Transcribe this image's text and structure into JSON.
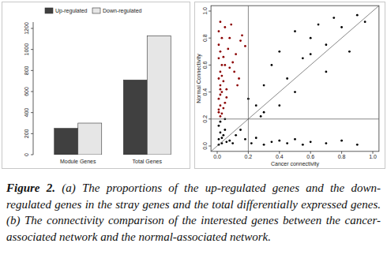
{
  "chart_data": [
    {
      "type": "bar",
      "categories": [
        "Module Genes",
        "Total Genes"
      ],
      "series": [
        {
          "name": "Up-regulated",
          "color": "#404040",
          "values": [
            250,
            710
          ]
        },
        {
          "name": "Down-regulated",
          "color": "#e6e6e6",
          "values": [
            300,
            1130
          ]
        }
      ],
      "ylim": [
        0,
        1260
      ],
      "yticks": [
        0,
        200,
        400,
        600,
        800,
        1000,
        1200
      ],
      "legend": "top-left",
      "grid": false
    },
    {
      "type": "scatter",
      "x_label": "Cancer connectivity",
      "y_label": "Normal Connectivity",
      "series": [
        {
          "color": "#8b0000",
          "marker": "circle",
          "x": [
            0.01,
            0.02,
            0.01,
            0.03,
            0.02,
            0.01,
            0.04,
            0.02,
            0.03,
            0.01,
            0.02,
            0.05,
            0.01,
            0.03,
            0.02,
            0.04,
            0.01,
            0.06,
            0.02,
            0.03,
            0.08,
            0.1,
            0.12,
            0.07,
            0.15,
            0.05,
            0.09,
            0.11,
            0.13,
            0.16,
            0.02,
            0.04,
            0.06,
            0.01,
            0.03,
            0.18,
            0.14,
            0.08,
            0.05,
            0.02
          ],
          "values": [
            0.25,
            0.3,
            0.35,
            0.4,
            0.45,
            0.5,
            0.28,
            0.55,
            0.6,
            0.65,
            0.7,
            0.32,
            0.75,
            0.8,
            0.38,
            0.48,
            0.85,
            0.42,
            0.22,
            0.52,
            0.58,
            0.62,
            0.68,
            0.72,
            0.78,
            0.88,
            0.9,
            0.55,
            0.45,
            0.82,
            0.92,
            0.66,
            0.36,
            0.27,
            0.24,
            0.74,
            0.5,
            0.8,
            0.6,
            0.42
          ]
        },
        {
          "color": "#000000",
          "marker": "circle",
          "x": [
            0.01,
            0.02,
            0.03,
            0.01,
            0.04,
            0.02,
            0.05,
            0.03,
            0.06,
            0.01,
            0.08,
            0.1,
            0.12,
            0.15,
            0.18,
            0.22,
            0.25,
            0.3,
            0.35,
            0.4,
            0.45,
            0.5,
            0.55,
            0.6,
            0.7,
            0.8,
            0.9,
            0.95,
            0.25,
            0.3,
            0.35,
            0.4,
            0.45,
            0.5,
            0.55,
            0.6,
            0.65,
            0.7,
            0.75,
            0.8,
            0.85,
            0.9,
            0.3,
            0.5,
            0.7,
            0.4,
            0.6,
            0.2,
            0.28,
            0.05
          ],
          "values": [
            0.05,
            0.1,
            0.02,
            0.15,
            0.08,
            0.18,
            0.12,
            0.06,
            0.03,
            0.01,
            0.04,
            0.02,
            0.08,
            0.12,
            0.05,
            0.02,
            0.06,
            0.01,
            0.03,
            0.04,
            0.02,
            0.05,
            0.01,
            0.03,
            0.02,
            0.04,
            0.01,
            0.92,
            0.3,
            0.45,
            0.6,
            0.7,
            0.5,
            0.85,
            0.65,
            0.8,
            0.9,
            0.75,
            0.95,
            0.88,
            0.7,
            0.97,
            0.25,
            0.4,
            0.55,
            0.3,
            0.68,
            0.35,
            0.22,
            0.2
          ]
        }
      ],
      "reference_lines": {
        "x": 0.2,
        "y": 0.2
      },
      "xlim": [
        -0.04,
        1.04
      ],
      "ylim": [
        -0.04,
        1.04
      ],
      "xticks": [
        {
          "value": 0,
          "label": "0.0"
        },
        0.2,
        0.4,
        0.6,
        0.8,
        {
          "value": 1,
          "label": "1.0"
        }
      ],
      "yticks": [
        {
          "value": 0,
          "label": "0.0"
        },
        0.2,
        0.4,
        0.6,
        0.8,
        {
          "value": 1,
          "label": "1.0"
        }
      ],
      "grid": false
    }
  ],
  "caption": {
    "label": "Figure 2.",
    "text": "(a) The proportions of the up-regulated genes and the down-regulated genes in the stray genes and the total differentially expressed genes. (b) The connectivity comparison of the interested genes between the cancer-associated network and the normal-associated network."
  }
}
